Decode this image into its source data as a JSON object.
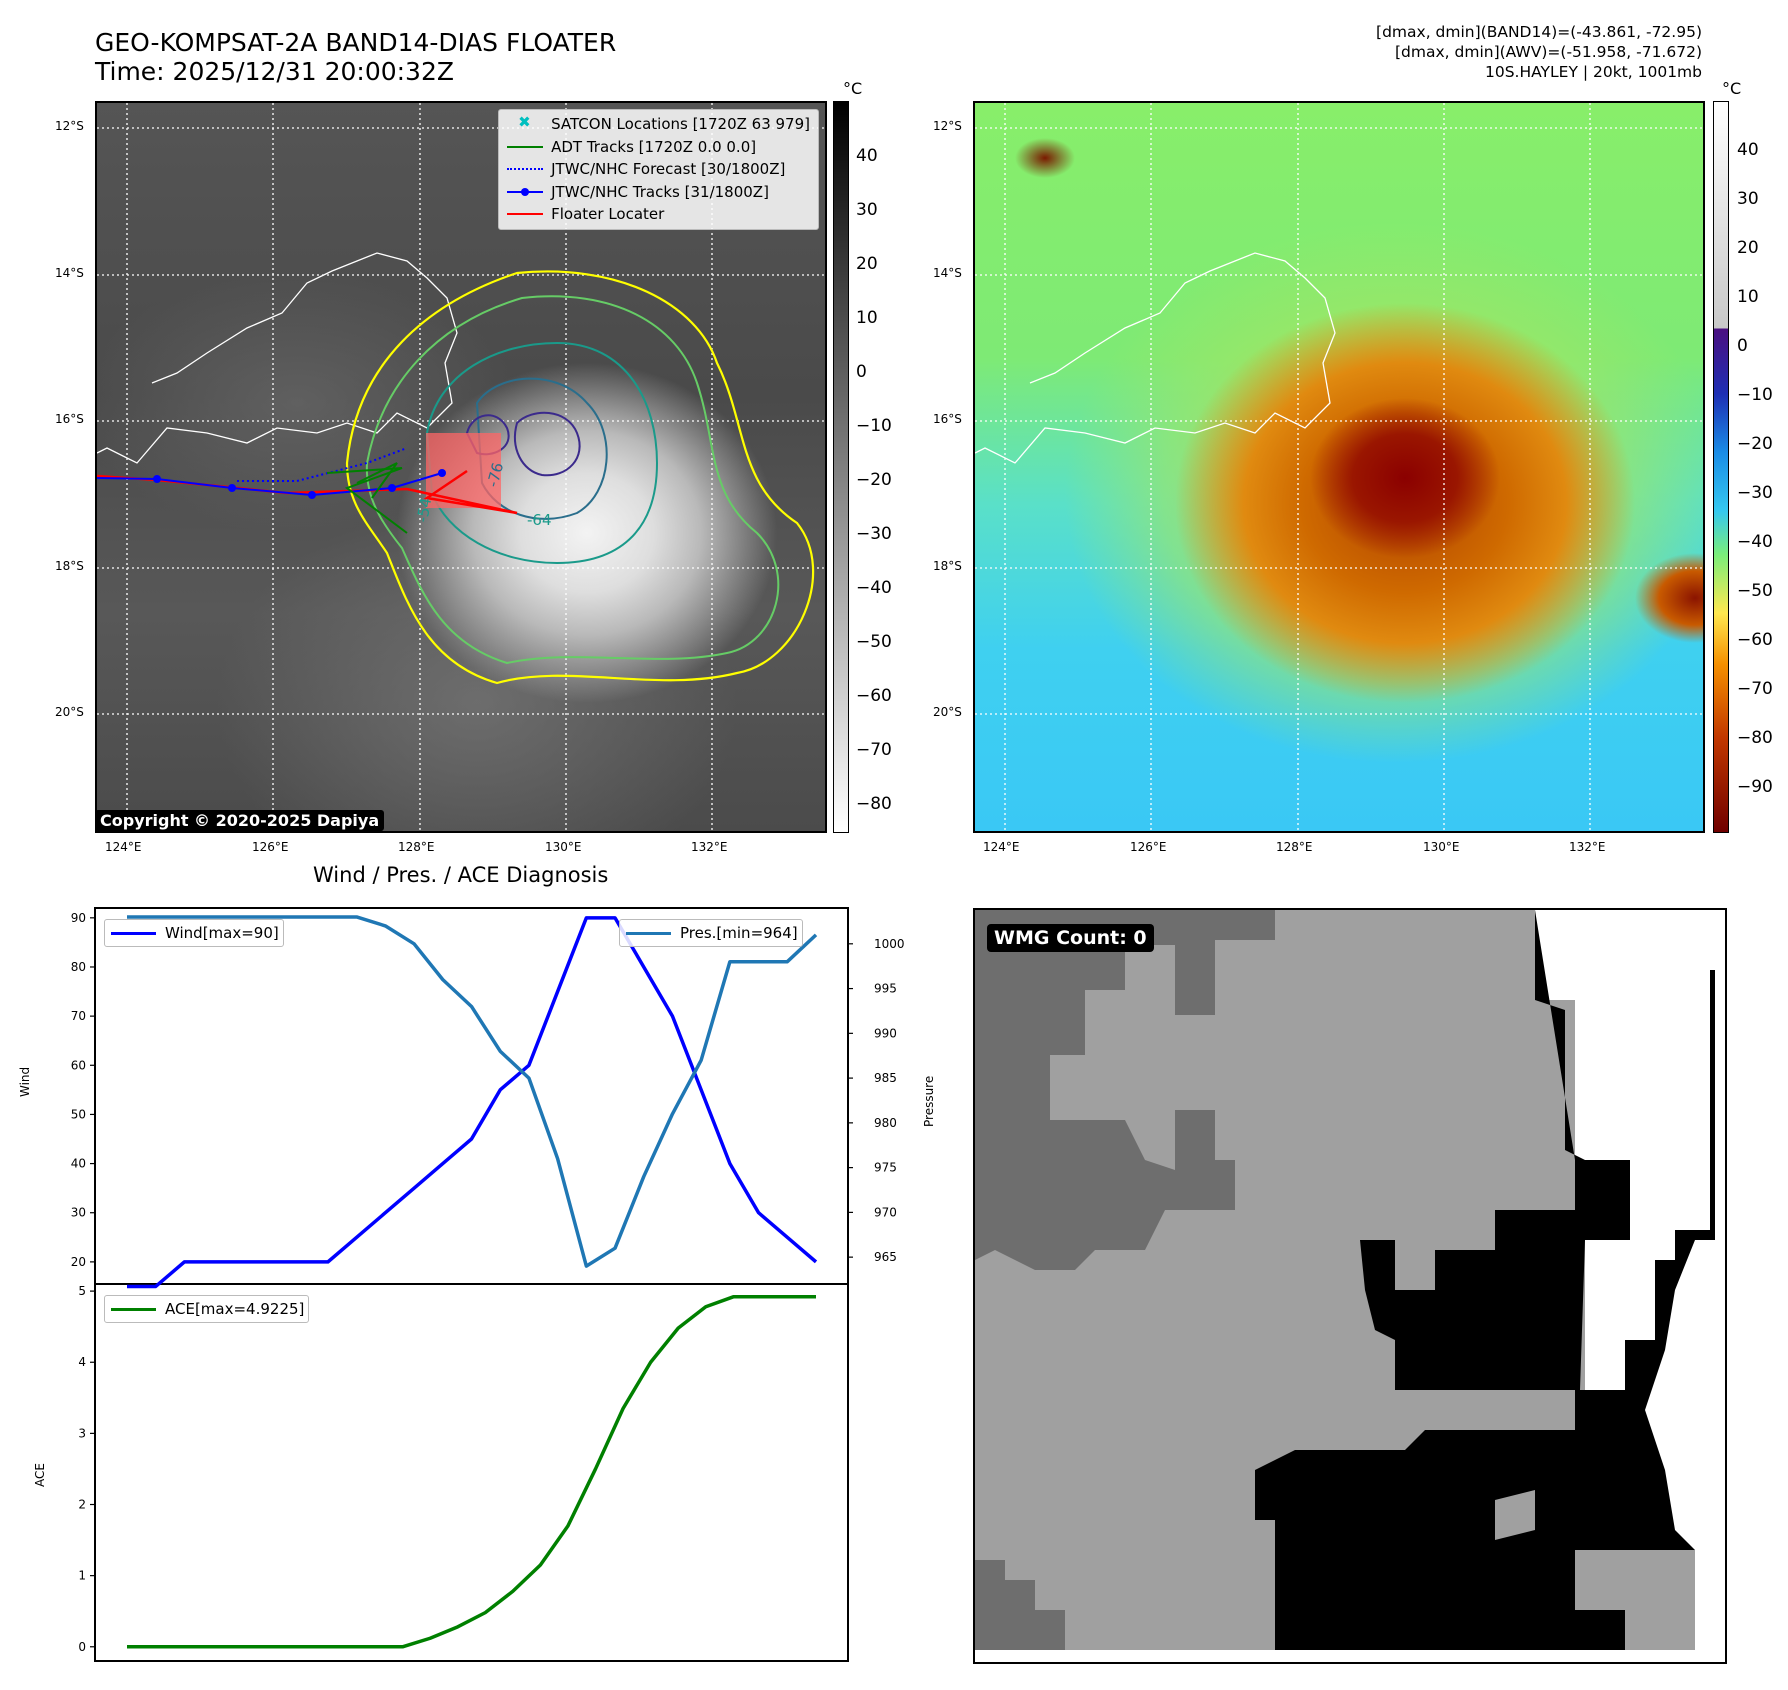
{
  "header": {
    "title_line1": "GEO-KOMPSAT-2A BAND14-DIAS FLOATER",
    "title_line2": "Time: 2025/12/31 20:00:32Z",
    "stats_line1": "[dmax, dmin](BAND14)=(-43.861, -72.95)",
    "stats_line2": "[dmax, dmin](AWV)=(-51.958, -71.672)",
    "stats_line3": "10S.HAYLEY | 20kt, 1001mb"
  },
  "map": {
    "lat_labels": [
      "12°S",
      "14°S",
      "16°S",
      "18°S",
      "20°S"
    ],
    "lon_labels": [
      "124°E",
      "126°E",
      "128°E",
      "130°E",
      "132°E"
    ],
    "copyright": "Copyright © 2020-2025 Dapiya",
    "contour_labels": [
      "-54",
      "-76",
      "-64"
    ],
    "legend": [
      {
        "label": "SATCON Locations [1720Z 63 979]",
        "color": "#00bfbf",
        "style": "x-marker"
      },
      {
        "label": "ADT Tracks [1720Z 0.0 0.0]",
        "color": "#008000",
        "style": "solid"
      },
      {
        "label": "JTWC/NHC Forecast [30/1800Z]",
        "color": "#0000ff",
        "style": "dotted"
      },
      {
        "label": "JTWC/NHC Tracks [31/1800Z]",
        "color": "#0000ff",
        "style": "solid-dot"
      },
      {
        "label": "Floater Locater",
        "color": "#ff0000",
        "style": "solid"
      }
    ]
  },
  "colorbar_gray": {
    "unit": "°C",
    "ticks": [
      "40",
      "30",
      "20",
      "10",
      "0",
      "−10",
      "−20",
      "−30",
      "−40",
      "−50",
      "−60",
      "−70",
      "−80"
    ]
  },
  "colorbar_color": {
    "unit": "°C",
    "ticks": [
      "40",
      "30",
      "20",
      "10",
      "0",
      "−10",
      "−20",
      "−30",
      "−40",
      "−50",
      "−60",
      "−70",
      "−80",
      "−90"
    ]
  },
  "diagnosis": {
    "title": "Wind / Pres. / ACE Diagnosis",
    "wind_axis_label": "Wind",
    "pres_axis_label": "Pressure",
    "ace_axis_label": "ACE",
    "wind_legend": "Wind[max=90]",
    "pres_legend": "Pres.[min=964]",
    "ace_legend": "ACE[max=4.9225]"
  },
  "wmg": {
    "label": "WMG Count: 0"
  },
  "chart_data": [
    {
      "type": "line",
      "title": "Wind / Pres. / ACE Diagnosis",
      "ylabel": "Wind",
      "ylim": [
        15.5,
        92
      ],
      "yticks": [
        20,
        30,
        40,
        50,
        60,
        70,
        80,
        90
      ],
      "series": [
        {
          "name": "Wind[max=90]",
          "color": "#0000ff",
          "values": [
            15,
            15,
            20,
            20,
            20,
            20,
            20,
            20,
            25,
            30,
            35,
            40,
            45,
            55,
            60,
            75,
            90,
            90,
            80,
            70,
            55,
            40,
            30,
            25,
            20
          ]
        }
      ]
    },
    {
      "type": "line",
      "ylabel": "Pressure",
      "ylim": [
        962,
        1004
      ],
      "yticks": [
        965,
        970,
        975,
        980,
        985,
        990,
        995,
        1000
      ],
      "series": [
        {
          "name": "Pres.[min=964]",
          "color": "#1f77b4",
          "values": [
            1003,
            1003,
            1003,
            1003,
            1003,
            1003,
            1003,
            1003,
            1003,
            1002,
            1000,
            996,
            993,
            988,
            985,
            976,
            964,
            966,
            974,
            981,
            987,
            998,
            998,
            998,
            1001
          ]
        }
      ]
    },
    {
      "type": "line",
      "ylabel": "ACE",
      "ylim": [
        -0.2,
        5.1
      ],
      "yticks": [
        0,
        1,
        2,
        3,
        4,
        5
      ],
      "series": [
        {
          "name": "ACE[max=4.9225]",
          "color": "#008000",
          "values": [
            0,
            0,
            0,
            0,
            0,
            0,
            0,
            0,
            0,
            0,
            0,
            0.12,
            0.28,
            0.48,
            0.78,
            1.15,
            1.7,
            2.5,
            3.35,
            4.0,
            4.48,
            4.78,
            4.92,
            4.92,
            4.92,
            4.92
          ]
        }
      ]
    }
  ]
}
